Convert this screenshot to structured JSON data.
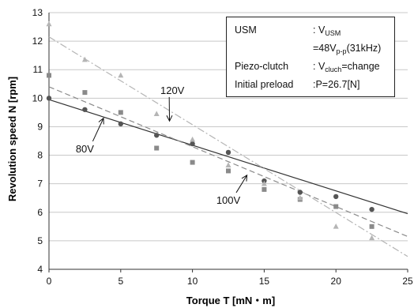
{
  "chart_data": {
    "type": "scatter",
    "xlabel": "Torque T [mN・m]",
    "ylabel": "Revolution speed N [rpm]",
    "xlim": [
      0,
      25
    ],
    "ylim": [
      4,
      13
    ],
    "x_ticks": [
      "0",
      "5",
      "10",
      "15",
      "20",
      "25"
    ],
    "y_ticks": [
      "4",
      "5",
      "6",
      "7",
      "8",
      "9",
      "10",
      "11",
      "12",
      "13"
    ],
    "grid": "horizontal",
    "legend": "none",
    "series": [
      {
        "name": "80V",
        "marker": "circle",
        "color": "#555555",
        "line_style": "solid",
        "fit": [
          [
            0,
            9.95
          ],
          [
            25,
            5.95
          ]
        ],
        "points": [
          [
            0,
            10.0
          ],
          [
            2.5,
            9.6
          ],
          [
            5,
            9.1
          ],
          [
            7.5,
            8.7
          ],
          [
            10,
            8.4
          ],
          [
            12.5,
            8.1
          ],
          [
            15,
            7.1
          ],
          [
            17.5,
            6.7
          ],
          [
            20,
            6.55
          ],
          [
            22.5,
            6.1
          ]
        ]
      },
      {
        "name": "100V",
        "marker": "square",
        "color": "#8a8a8a",
        "line_style": "dashed",
        "fit": [
          [
            0,
            10.4
          ],
          [
            25,
            5.15
          ]
        ],
        "points": [
          [
            0,
            10.8
          ],
          [
            2.5,
            10.2
          ],
          [
            5,
            9.5
          ],
          [
            7.5,
            8.25
          ],
          [
            10,
            7.75
          ],
          [
            12.5,
            7.45
          ],
          [
            15,
            6.8
          ],
          [
            17.5,
            6.45
          ],
          [
            20,
            6.2
          ],
          [
            22.5,
            5.5
          ]
        ]
      },
      {
        "name": "120V",
        "marker": "triangle",
        "color": "#b5b5b5",
        "line_style": "dashdot",
        "fit": [
          [
            0,
            12.15
          ],
          [
            25,
            4.45
          ]
        ],
        "points": [
          [
            0,
            12.6
          ],
          [
            2.5,
            11.35
          ],
          [
            5,
            10.8
          ],
          [
            7.5,
            9.45
          ],
          [
            10,
            8.55
          ],
          [
            12.5,
            7.65
          ],
          [
            15,
            7.0
          ],
          [
            17.5,
            6.5
          ],
          [
            20,
            5.5
          ],
          [
            22.5,
            5.1
          ]
        ]
      }
    ],
    "annotations": [
      {
        "text": "120V",
        "at": [
          8.6,
          10.15
        ],
        "points_to": [
          8.4,
          9.2
        ]
      },
      {
        "text": "80V",
        "at": [
          2.5,
          8.1
        ],
        "points_to": [
          3.8,
          9.3
        ]
      },
      {
        "text": "100V",
        "at": [
          12.5,
          6.3
        ],
        "points_to": [
          13.8,
          7.3
        ]
      }
    ]
  },
  "info_box": {
    "rows": [
      {
        "key": "USM",
        "value_prefix": ": V",
        "value_sub": "USM",
        "value_suffix": ""
      },
      {
        "key": "",
        "value_prefix": "=48V",
        "value_sub": "p-p",
        "value_suffix": "(31kHz)"
      },
      {
        "key": "Piezo-clutch",
        "value_prefix": ": V",
        "value_sub": "cluch",
        "value_suffix": "=change"
      },
      {
        "key": "Initial preload",
        "value_prefix": ":P=26.7[N]",
        "value_sub": "",
        "value_suffix": ""
      }
    ]
  }
}
